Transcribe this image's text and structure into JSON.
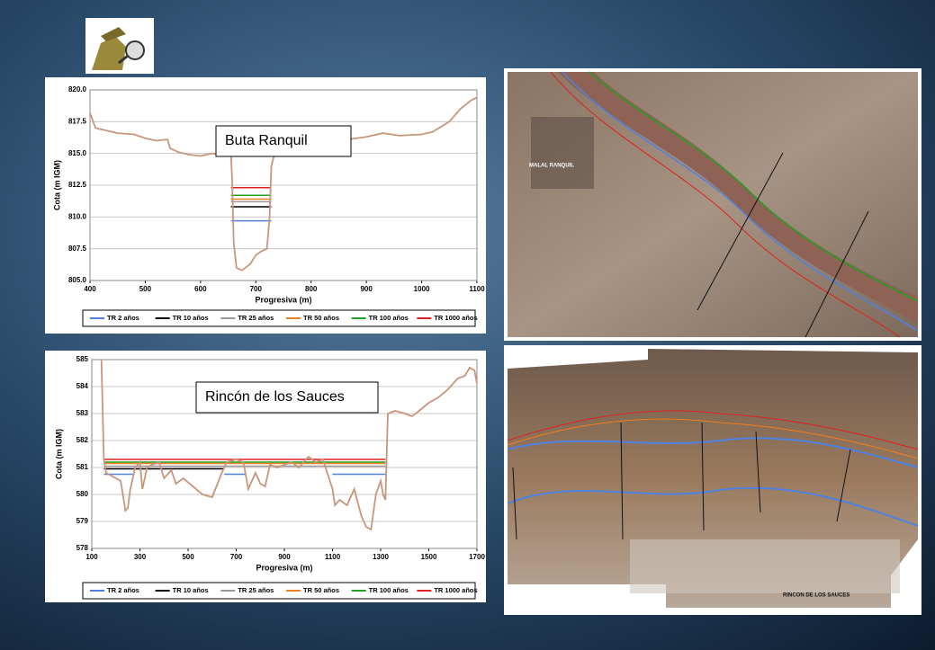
{
  "chart_data": [
    {
      "type": "line",
      "annotation": "Buta Ranquil",
      "ylabel": "Cota (m IGM)",
      "xlabel": "Progresiva (m)",
      "xlim": [
        400,
        1100
      ],
      "xticks": [
        400,
        500,
        600,
        700,
        800,
        900,
        1000,
        1100
      ],
      "ylim": [
        805,
        820
      ],
      "yticks": [
        {
          "value": 805,
          "label": "805.0"
        },
        807.5,
        {
          "value": 810,
          "label": "810.0"
        },
        812.5,
        {
          "value": 815,
          "label": "815.0"
        },
        817.5,
        {
          "value": 820,
          "label": "820.0"
        }
      ],
      "grid": true,
      "profile": {
        "color": "#c8967a",
        "x": [
          400,
          410,
          430,
          450,
          480,
          500,
          520,
          540,
          545,
          560,
          580,
          600,
          620,
          640,
          655,
          657,
          660,
          665,
          675,
          690,
          700,
          710,
          720,
          725,
          728,
          735,
          750,
          800,
          850,
          900,
          930,
          960,
          1000,
          1020,
          1050,
          1070,
          1090,
          1100
        ],
        "values": [
          818.2,
          817,
          816.8,
          816.6,
          816.5,
          816.2,
          816,
          816.1,
          815.4,
          815.1,
          814.9,
          814.8,
          815,
          814.9,
          815,
          813,
          808,
          806,
          805.8,
          806.3,
          807,
          807.3,
          807.5,
          810,
          814,
          815.2,
          815.5,
          815.8,
          816,
          816.3,
          816.6,
          816.4,
          816.5,
          816.7,
          817.5,
          818.5,
          819.2,
          819.4
        ]
      },
      "series": [
        {
          "name": "TR 2 años",
          "color": "#4f81e0",
          "x": [
            655,
            728
          ],
          "values": [
            809.7,
            809.7
          ]
        },
        {
          "name": "TR 10 años",
          "color": "#000000",
          "x": [
            655,
            728
          ],
          "values": [
            810.8,
            810.8
          ]
        },
        {
          "name": "TR 25 años",
          "color": "#999999",
          "x": [
            655,
            728
          ],
          "values": [
            811.2,
            811.2
          ]
        },
        {
          "name": "TR 50 años",
          "color": "#f07f1e",
          "x": [
            655,
            728
          ],
          "values": [
            811.4,
            811.4
          ]
        },
        {
          "name": "TR 100 años",
          "color": "#22a022",
          "x": [
            655,
            728
          ],
          "values": [
            811.7,
            811.7
          ]
        },
        {
          "name": "TR 1000 años",
          "color": "#e02020",
          "x": [
            655,
            728
          ],
          "values": [
            812.3,
            812.3
          ]
        }
      ]
    },
    {
      "type": "line",
      "annotation": "Rincón de los Sauces",
      "ylabel": "Cota (m IGM)",
      "xlabel": "Progresiva (m)",
      "xlim": [
        100,
        1700
      ],
      "xticks": [
        100,
        300,
        500,
        700,
        900,
        1100,
        1300,
        1500,
        1700
      ],
      "ylim": [
        578,
        585
      ],
      "yticks": [
        578,
        579,
        580,
        581,
        582,
        583,
        584,
        585
      ],
      "grid": true,
      "profile": {
        "color": "#c8967a",
        "x": [
          140,
          150,
          160,
          180,
          200,
          220,
          240,
          250,
          260,
          280,
          300,
          310,
          330,
          350,
          380,
          400,
          430,
          450,
          480,
          520,
          560,
          600,
          640,
          660,
          700,
          730,
          750,
          780,
          800,
          820,
          840,
          870,
          900,
          930,
          960,
          1000,
          1030,
          1060,
          1100,
          1110,
          1130,
          1160,
          1190,
          1220,
          1240,
          1260,
          1280,
          1300,
          1310,
          1320,
          1330,
          1360,
          1400,
          1430,
          1460,
          1500,
          1540,
          1580,
          1620,
          1650,
          1670,
          1690,
          1700
        ],
        "values": [
          585,
          581.3,
          580.8,
          580.7,
          580.6,
          580.5,
          579.4,
          579.5,
          580.2,
          581,
          581.2,
          580.2,
          581,
          581.1,
          581.2,
          580.6,
          580.9,
          580.4,
          580.6,
          580.3,
          580,
          579.9,
          580.8,
          581.2,
          581.3,
          581.2,
          580.2,
          580.8,
          580.4,
          580.3,
          581.1,
          581,
          581.1,
          581.2,
          581,
          581.4,
          581.2,
          581.3,
          580.2,
          579.6,
          579.8,
          579.6,
          580.2,
          579.2,
          578.8,
          578.7,
          580,
          580.5,
          580,
          579.8,
          583,
          583.1,
          583,
          582.9,
          583.1,
          583.4,
          583.6,
          583.9,
          584.3,
          584.4,
          584.7,
          584.6,
          584.1
        ]
      },
      "series": [
        {
          "name": "TR 2 años",
          "color": "#4f81e0",
          "x": [
            150,
            270,
            480,
            650,
            740,
            830,
            1100,
            1320
          ],
          "values": [
            580.75,
            580.75,
            null,
            580.75,
            580.75,
            null,
            580.75,
            580.75
          ]
        },
        {
          "name": "TR 10 años",
          "color": "#000000",
          "x": [
            150,
            650,
            740,
            1320
          ],
          "values": [
            580.95,
            580.95,
            null,
            580.95
          ]
        },
        {
          "name": "TR 25 años",
          "color": "#999999",
          "x": [
            150,
            1320
          ],
          "values": [
            581.05,
            581.05
          ]
        },
        {
          "name": "TR 50 años",
          "color": "#f07f1e",
          "x": [
            150,
            1320
          ],
          "values": [
            581.15,
            581.15
          ]
        },
        {
          "name": "TR 100 años",
          "color": "#22a022",
          "x": [
            150,
            1320
          ],
          "values": [
            581.2,
            581.2
          ]
        },
        {
          "name": "TR 1000 años",
          "color": "#e02020",
          "x": [
            150,
            1320
          ],
          "values": [
            581.3,
            581.3
          ]
        }
      ]
    }
  ],
  "images": [
    {
      "label": "MALAL RANQUIL"
    },
    {
      "label": "RINCON DE LOS SAUCES"
    }
  ]
}
